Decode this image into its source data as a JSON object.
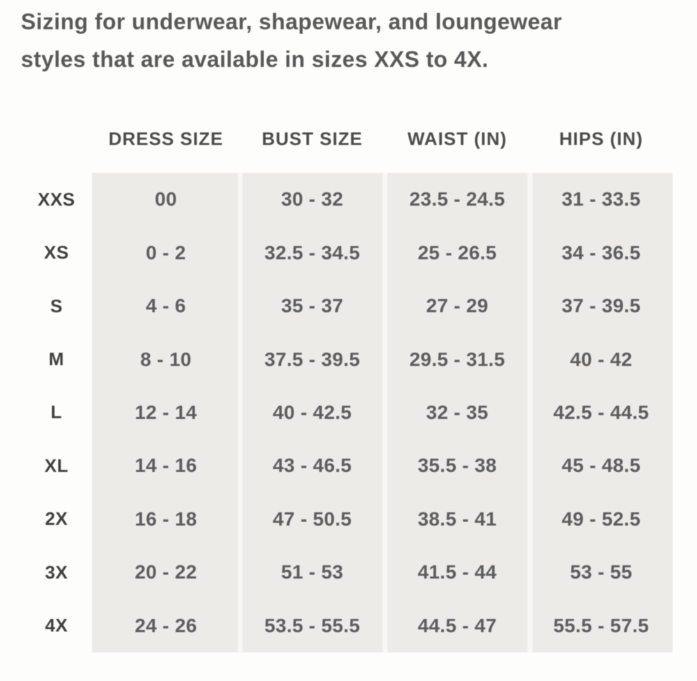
{
  "intro": {
    "line1": "Sizing for underwear, shapewear, and loungewear",
    "line2": "styles that are available in sizes XXS to 4X."
  },
  "table": {
    "columns": [
      "DRESS SIZE",
      "BUST SIZE",
      "WAIST (IN)",
      "HIPS (IN)"
    ],
    "rows": [
      {
        "size": "XXS",
        "dress": "00",
        "bust": "30 - 32",
        "waist": "23.5 - 24.5",
        "hips": "31 - 33.5"
      },
      {
        "size": "XS",
        "dress": "0 - 2",
        "bust": "32.5 - 34.5",
        "waist": "25 - 26.5",
        "hips": "34 - 36.5"
      },
      {
        "size": "S",
        "dress": "4 - 6",
        "bust": "35 - 37",
        "waist": "27 - 29",
        "hips": "37 - 39.5"
      },
      {
        "size": "M",
        "dress": "8 - 10",
        "bust": "37.5 - 39.5",
        "waist": "29.5 - 31.5",
        "hips": "40 - 42"
      },
      {
        "size": "L",
        "dress": "12 - 14",
        "bust": "40 - 42.5",
        "waist": "32 - 35",
        "hips": "42.5 - 44.5"
      },
      {
        "size": "XL",
        "dress": "14 - 16",
        "bust": "43 - 46.5",
        "waist": "35.5 - 38",
        "hips": "45 - 48.5"
      },
      {
        "size": "2X",
        "dress": "16 - 18",
        "bust": "47 - 50.5",
        "waist": "38.5 - 41",
        "hips": "49 - 52.5"
      },
      {
        "size": "3X",
        "dress": "20 - 22",
        "bust": "51 - 53",
        "waist": "41.5 - 44",
        "hips": "53 - 55"
      },
      {
        "size": "4X",
        "dress": "24 - 26",
        "bust": "53.5 - 55.5",
        "waist": "44.5 - 47",
        "hips": "55.5 - 57.5"
      }
    ]
  },
  "colors": {
    "page_background": "#fdfdfc",
    "panel_background": "#ecebe8",
    "column_divider": "#f8f7f5",
    "intro_text": "#585858",
    "header_text": "#4c4c4c",
    "label_text": "#3f3f3f",
    "value_text": "#5d5d5d"
  }
}
